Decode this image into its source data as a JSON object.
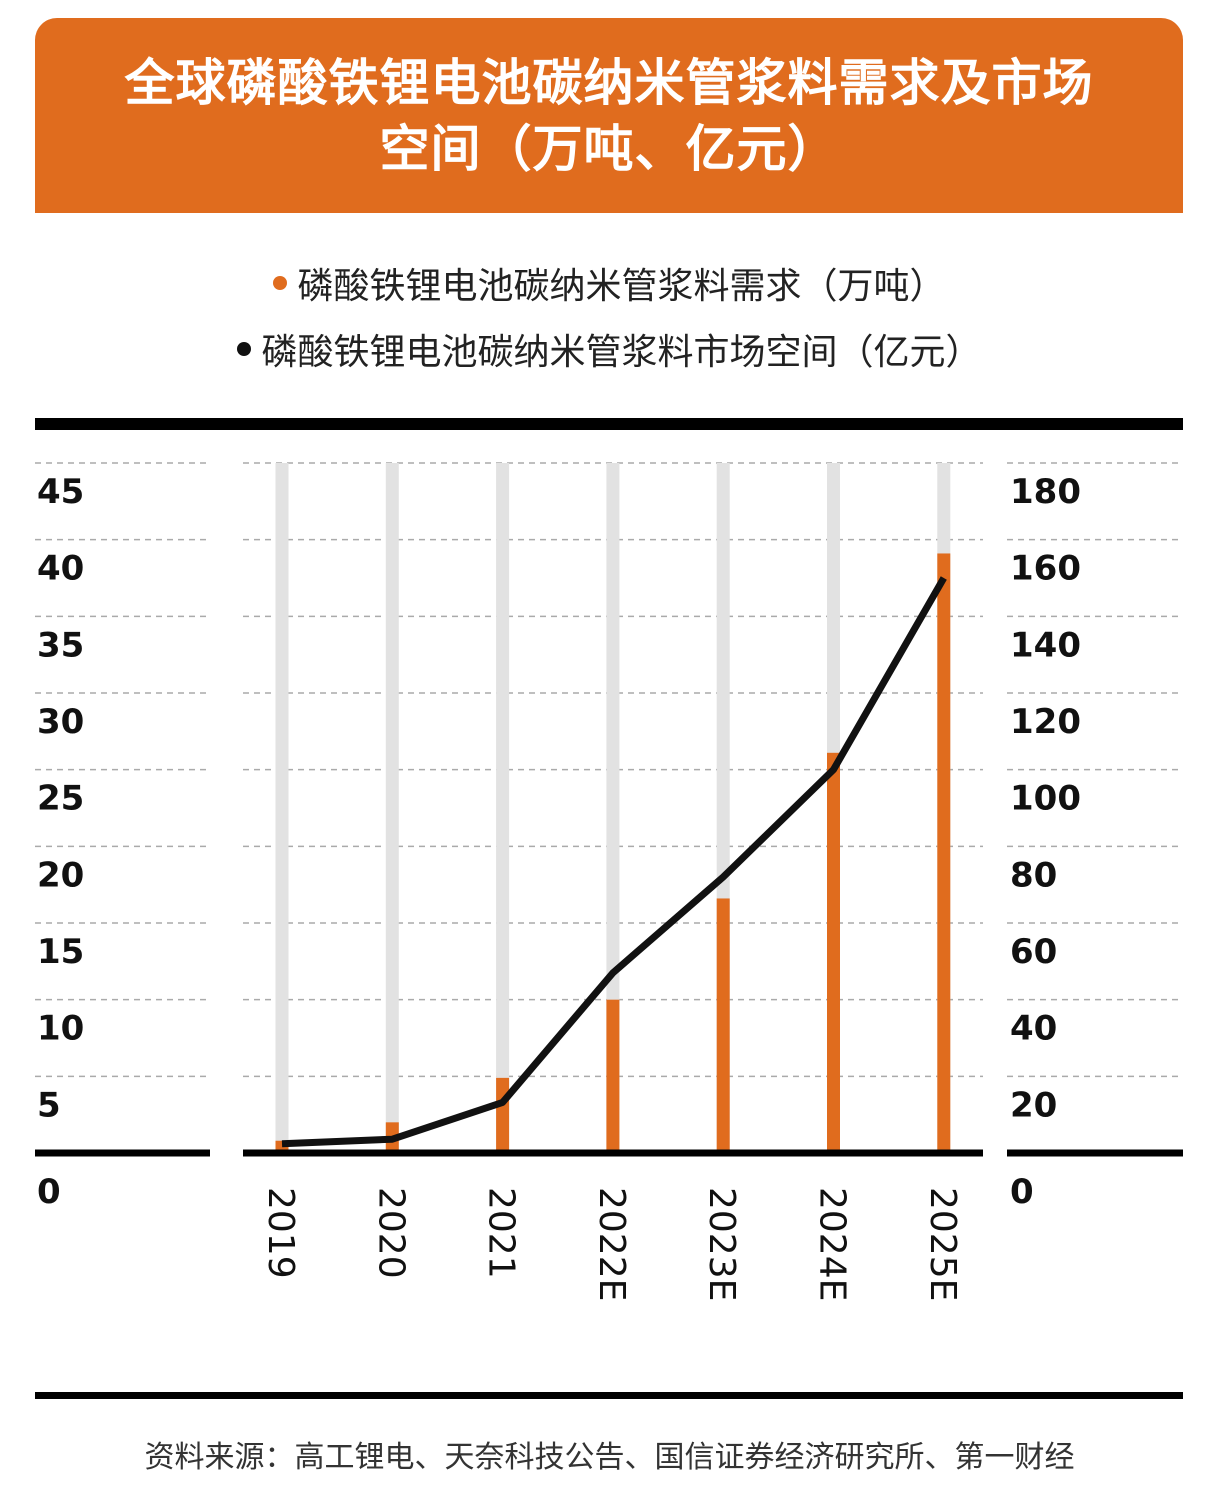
{
  "header": {
    "title": "全球磷酸铁锂电池碳纳米管浆料需求及市场空间（万吨、亿元）"
  },
  "legend": [
    {
      "label": "磷酸铁锂电池碳纳米管浆料需求（万吨）",
      "color": "#E06C1E",
      "marker": "dot"
    },
    {
      "label": "磷酸铁锂电池碳纳米管浆料市场空间（亿元）",
      "color": "#111111",
      "marker": "dot"
    }
  ],
  "footer": {
    "source": "资料来源：高工锂电、天奈科技公告、国信证券经济研究所、第一财经"
  },
  "colors": {
    "accent": "#E06C1E",
    "bar_track": "#E2E2E2",
    "line": "#111111",
    "grid": "#AAAAAA"
  },
  "chart_data": {
    "type": "bar",
    "title": "全球磷酸铁锂电池碳纳米管浆料需求及市场空间（万吨、亿元）",
    "xlabel": "",
    "categories": [
      "2019",
      "2020",
      "2021",
      "2022E",
      "2023E",
      "2024E",
      "2025E"
    ],
    "left_axis": {
      "label": "万吨",
      "ylim": [
        0,
        45
      ],
      "ticks": [
        "0",
        "5",
        "10",
        "15",
        "20",
        "25",
        "30",
        "35",
        "40",
        "45"
      ]
    },
    "right_axis": {
      "label": "亿元",
      "ylim": [
        0,
        180
      ],
      "ticks": [
        "0",
        "20",
        "40",
        "60",
        "80",
        "100",
        "120",
        "140",
        "160",
        "180"
      ]
    },
    "grid": true,
    "legend_position": "top-center",
    "series": [
      {
        "name": "磷酸铁锂电池碳纳米管浆料需求（万吨）",
        "type": "bar",
        "axis": "left",
        "color": "#E06C1E",
        "values": [
          0.8,
          2.0,
          4.9,
          10.0,
          16.6,
          26.1,
          39.1
        ]
      },
      {
        "name": "磷酸铁锂电池碳纳米管浆料市场空间（亿元）",
        "type": "line",
        "axis": "right",
        "color": "#111111",
        "values": [
          2.4,
          3.6,
          13.2,
          47,
          72,
          100,
          150
        ]
      }
    ]
  }
}
